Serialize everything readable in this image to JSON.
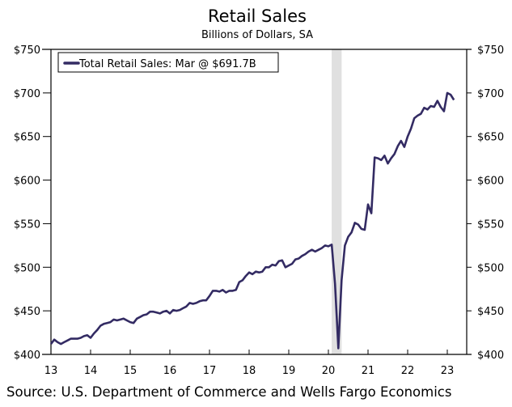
{
  "chart_data": {
    "type": "line",
    "title": "Retail Sales",
    "subtitle": "Billions of Dollars, SA",
    "source": "Source: U.S. Department of Commerce and Wells Fargo Economics",
    "legend": {
      "label": "Total Retail Sales: Mar @ $691.7B",
      "placement": "top-left"
    },
    "xlabel": "",
    "ylabel": "",
    "x_tick_labels": [
      "13",
      "14",
      "15",
      "16",
      "17",
      "18",
      "19",
      "20",
      "21",
      "22",
      "23"
    ],
    "y_tick_labels": [
      "$400",
      "$450",
      "$500",
      "$550",
      "$600",
      "$650",
      "$700",
      "$750"
    ],
    "ylim": [
      400,
      750
    ],
    "xlim": [
      "2013-01",
      "2023-06"
    ],
    "grid": false,
    "line_color": "#332b63",
    "recession_color": "#e0e0e0",
    "recession_shading": [
      {
        "start": "2020-02",
        "end": "2020-04"
      }
    ],
    "series": [
      {
        "name": "Total Retail Sales",
        "start": "2013-01",
        "frequency": "monthly",
        "values": [
          412,
          417,
          414,
          412,
          414,
          416,
          418,
          418,
          418,
          419,
          421,
          422,
          419,
          424,
          428,
          433,
          435,
          436,
          437,
          440,
          439,
          440,
          441,
          439,
          437,
          436,
          441,
          443,
          445,
          446,
          449,
          449,
          448,
          447,
          449,
          450,
          447,
          451,
          450,
          451,
          453,
          455,
          459,
          458,
          459,
          461,
          462,
          462,
          467,
          473,
          473,
          472,
          474,
          471,
          473,
          473,
          474,
          483,
          485,
          490,
          494,
          492,
          495,
          494,
          495,
          500,
          500,
          503,
          502,
          507,
          508,
          500,
          502,
          504,
          509,
          510,
          513,
          515,
          518,
          520,
          518,
          520,
          522,
          525,
          524,
          526,
          481,
          407,
          485,
          525,
          535,
          540,
          551,
          549,
          544,
          543,
          572,
          562,
          626,
          625,
          623,
          628,
          619,
          625,
          630,
          639,
          645,
          638,
          650,
          659,
          671,
          674,
          676,
          683,
          681,
          685,
          684,
          691,
          684,
          679,
          700,
          698,
          692
        ]
      }
    ]
  }
}
